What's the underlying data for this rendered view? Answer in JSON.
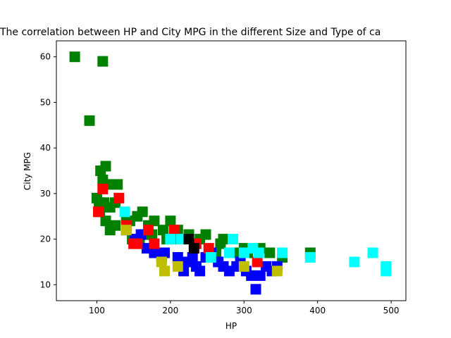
{
  "chart_data": {
    "type": "scatter",
    "title": "The correlation between HP and City MPG in the different Size and Type of ca",
    "xlabel": "HP",
    "ylabel": "City MPG",
    "xlim": [
      45,
      520
    ],
    "ylim": [
      6.5,
      63.5
    ],
    "xticks": [
      100,
      200,
      300,
      400,
      500
    ],
    "yticks": [
      10,
      20,
      30,
      40,
      50,
      60
    ],
    "grid": false,
    "legend": "none",
    "marker": "square",
    "series": [
      {
        "color": "#008000",
        "points": [
          [
            70,
            60
          ],
          [
            108,
            59
          ],
          [
            90,
            46
          ],
          [
            112,
            36
          ],
          [
            105,
            35
          ],
          [
            108,
            33
          ],
          [
            115,
            32
          ],
          [
            128,
            32
          ],
          [
            100,
            29
          ],
          [
            103,
            28
          ],
          [
            110,
            28
          ],
          [
            118,
            27
          ],
          [
            125,
            28
          ],
          [
            104,
            26
          ],
          [
            112,
            24
          ],
          [
            118,
            22
          ],
          [
            125,
            23
          ],
          [
            140,
            24
          ],
          [
            145,
            24
          ],
          [
            155,
            25
          ],
          [
            162,
            26
          ],
          [
            170,
            23
          ],
          [
            178,
            24
          ],
          [
            190,
            22
          ],
          [
            200,
            24
          ],
          [
            210,
            22
          ],
          [
            158,
            20
          ],
          [
            165,
            21
          ],
          [
            175,
            21
          ],
          [
            195,
            20
          ],
          [
            225,
            21
          ],
          [
            240,
            20
          ],
          [
            248,
            21
          ],
          [
            268,
            19
          ],
          [
            272,
            20
          ],
          [
            285,
            17
          ],
          [
            300,
            18
          ],
          [
            305,
            17
          ],
          [
            322,
            18
          ],
          [
            335,
            17
          ],
          [
            352,
            16
          ],
          [
            390,
            17
          ],
          [
            148,
            20
          ],
          [
            262,
            17
          ],
          [
            298,
            17
          ]
        ]
      },
      {
        "color": "#0000ff",
        "points": [
          [
            140,
            22
          ],
          [
            152,
            20
          ],
          [
            160,
            21
          ],
          [
            168,
            18
          ],
          [
            178,
            17
          ],
          [
            188,
            16
          ],
          [
            192,
            17
          ],
          [
            210,
            16
          ],
          [
            218,
            13
          ],
          [
            224,
            15
          ],
          [
            230,
            16
          ],
          [
            235,
            14
          ],
          [
            240,
            13
          ],
          [
            248,
            16
          ],
          [
            255,
            17
          ],
          [
            265,
            15
          ],
          [
            272,
            14
          ],
          [
            280,
            13
          ],
          [
            290,
            14
          ],
          [
            295,
            15
          ],
          [
            303,
            13
          ],
          [
            310,
            12
          ],
          [
            316,
            9
          ],
          [
            322,
            12
          ],
          [
            330,
            14
          ],
          [
            338,
            13
          ],
          [
            345,
            14
          ]
        ]
      },
      {
        "color": "#ff0000",
        "points": [
          [
            102,
            26
          ],
          [
            108,
            31
          ],
          [
            130,
            29
          ],
          [
            140,
            23
          ],
          [
            150,
            19
          ],
          [
            155,
            19
          ],
          [
            170,
            22
          ],
          [
            178,
            19
          ],
          [
            205,
            22
          ],
          [
            208,
            20
          ],
          [
            235,
            19
          ],
          [
            252,
            18
          ],
          [
            318,
            15
          ]
        ]
      },
      {
        "color": "#00ffff",
        "points": [
          [
            138,
            26
          ],
          [
            200,
            20
          ],
          [
            215,
            20
          ],
          [
            255,
            16
          ],
          [
            280,
            17
          ],
          [
            285,
            20
          ],
          [
            300,
            17
          ],
          [
            312,
            18
          ],
          [
            320,
            17
          ],
          [
            352,
            17
          ],
          [
            390,
            16
          ],
          [
            450,
            15
          ],
          [
            475,
            17
          ],
          [
            493,
            14
          ],
          [
            493,
            13
          ]
        ]
      },
      {
        "color": "#bfbf00",
        "points": [
          [
            140,
            22
          ],
          [
            188,
            15
          ],
          [
            192,
            13
          ],
          [
            210,
            14
          ],
          [
            300,
            14
          ],
          [
            345,
            13
          ]
        ]
      },
      {
        "color": "#000000",
        "points": [
          [
            225,
            20
          ],
          [
            232,
            18
          ]
        ]
      }
    ]
  }
}
